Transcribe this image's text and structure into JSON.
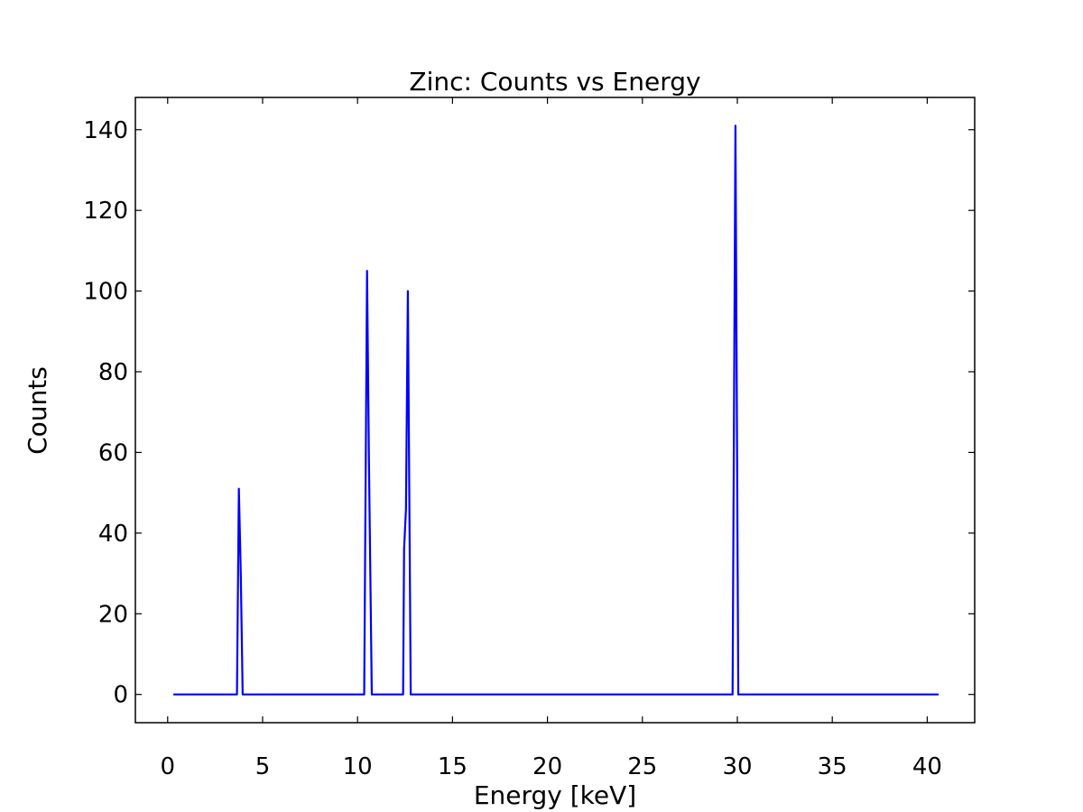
{
  "chart_data": {
    "type": "line",
    "title": "Zinc: Counts vs Energy",
    "xlabel": "Energy [keV]",
    "ylabel": "Counts",
    "xlim": [
      -1.7,
      42.5
    ],
    "ylim": [
      -7,
      148
    ],
    "xticks": [
      0,
      5,
      10,
      15,
      20,
      25,
      30,
      35,
      40
    ],
    "yticks": [
      0,
      20,
      40,
      60,
      80,
      100,
      120,
      140
    ],
    "grid": false,
    "line_color": "#0000ff",
    "series": [
      {
        "x": [
          0.3,
          3.65,
          3.75,
          3.85,
          3.95,
          10.35,
          10.5,
          10.6,
          10.75,
          12.4,
          12.45,
          12.55,
          12.65,
          12.8,
          29.75,
          29.9,
          30.05,
          40.6
        ],
        "values": [
          0,
          0,
          51,
          30,
          0,
          0,
          105,
          58,
          0,
          0,
          36,
          46,
          100,
          0,
          0,
          141,
          0,
          0
        ]
      }
    ]
  }
}
